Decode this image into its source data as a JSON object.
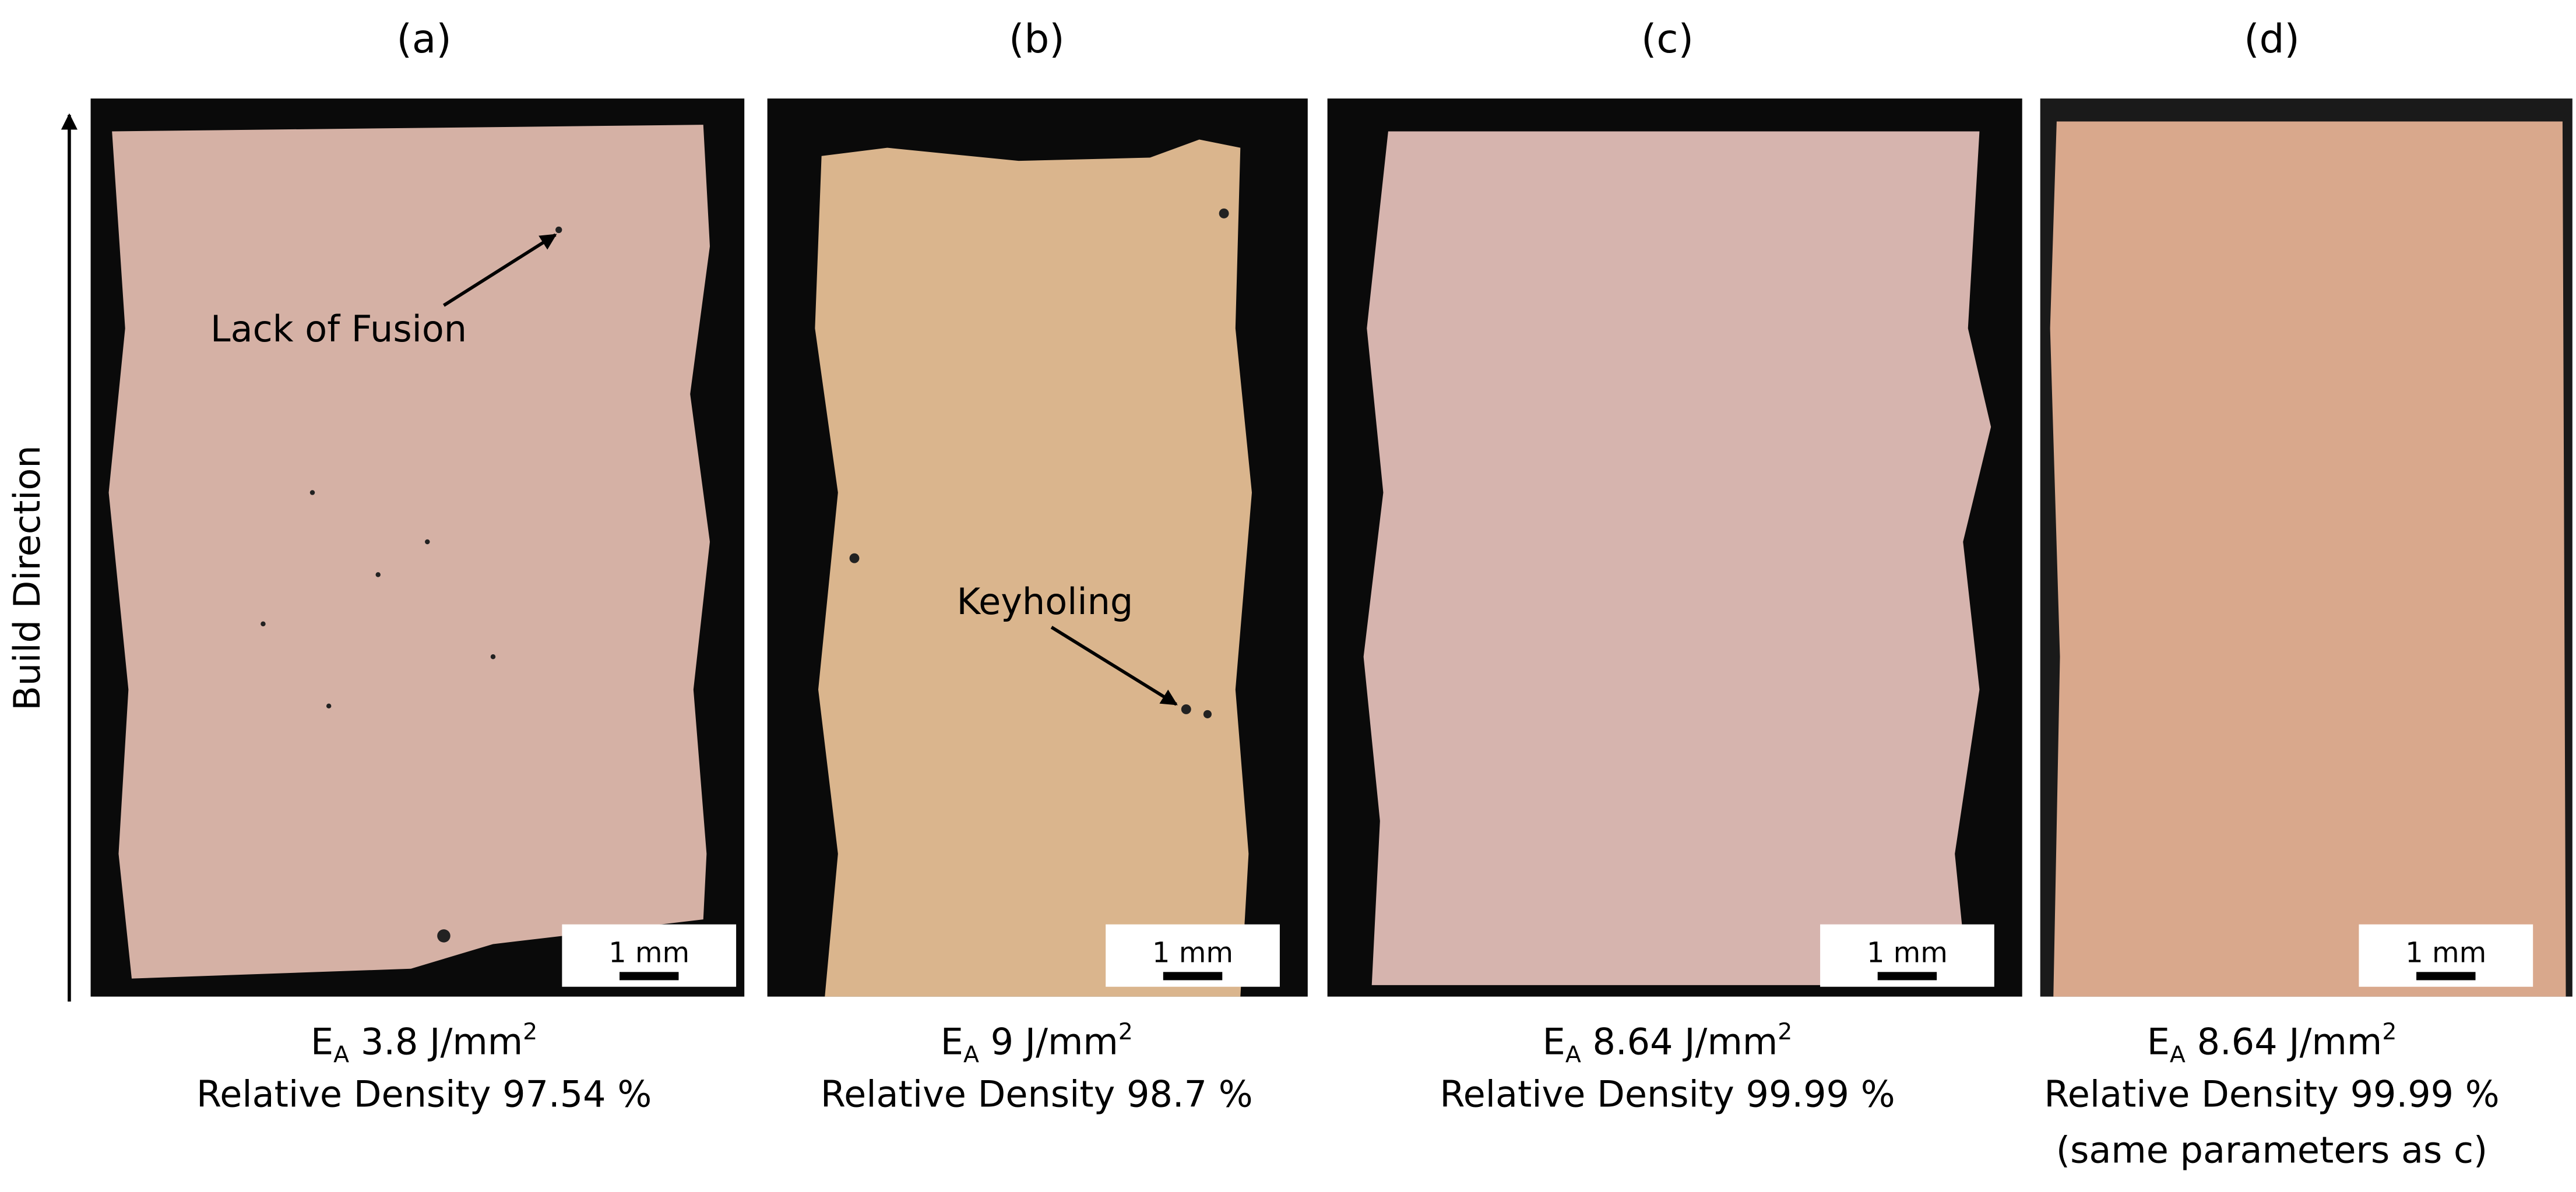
{
  "figure": {
    "build_direction": "Build Direction",
    "annotations": [
      "Lack of Fusion",
      "Keyholing"
    ],
    "panels": [
      {
        "label": "(a)",
        "energy_symbol": "E",
        "energy_subscript": "A",
        "energy": " 3.8 J/mm",
        "energy_superscript": "2",
        "density": "Relative Density 97.54 %",
        "scale_bar": "1 mm"
      },
      {
        "label": "(b)",
        "energy_symbol": "E",
        "energy_subscript": "A",
        "energy": " 9 J/mm",
        "energy_superscript": "2",
        "density": "Relative Density 98.7 %",
        "scale_bar": "1 mm"
      },
      {
        "label": "(c)",
        "energy_symbol": "E",
        "energy_subscript": "A",
        "energy": " 8.64 J/mm",
        "energy_superscript": "2",
        "density": "Relative Density 99.99 %",
        "scale_bar": "1 mm"
      },
      {
        "label": "(d)",
        "energy_symbol": "E",
        "energy_subscript": "A",
        "energy": " 8.64 J/mm",
        "energy_superscript": "2",
        "density": "Relative Density 99.99 %",
        "scale_bar": "1 mm",
        "note": "(same parameters as c)"
      }
    ]
  }
}
